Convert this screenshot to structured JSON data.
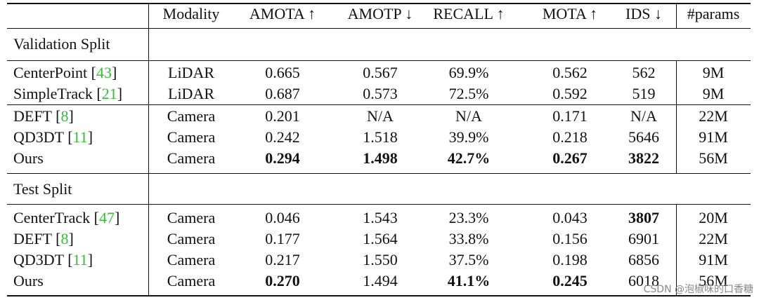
{
  "columns": [
    "",
    "Modality",
    "AMOTA ↑",
    "AMOTP ↓",
    "RECALL ↑",
    "MOTA ↑",
    "IDS ↓",
    "#params"
  ],
  "sections": [
    {
      "title": "Validation Split",
      "groups": [
        [
          {
            "method": "CenterPoint",
            "ref": "43",
            "modality": "LiDAR",
            "amota": "0.665",
            "amotp": "0.567",
            "recall": "69.9%",
            "mota": "0.562",
            "ids": "562",
            "params": "9M",
            "bold": []
          },
          {
            "method": "SimpleTrack",
            "ref": "21",
            "modality": "LiDAR",
            "amota": "0.687",
            "amotp": "0.573",
            "recall": "72.5%",
            "mota": "0.592",
            "ids": "519",
            "params": "9M",
            "bold": []
          }
        ],
        [
          {
            "method": "DEFT",
            "ref": "8",
            "modality": "Camera",
            "amota": "0.201",
            "amotp": "N/A",
            "recall": "N/A",
            "mota": "0.171",
            "ids": "N/A",
            "params": "22M",
            "bold": []
          },
          {
            "method": "QD3DT",
            "ref": "11",
            "modality": "Camera",
            "amota": "0.242",
            "amotp": "1.518",
            "recall": "39.9%",
            "mota": "0.218",
            "ids": "5646",
            "params": "91M",
            "bold": []
          },
          {
            "method": "Ours",
            "ref": "",
            "modality": "Camera",
            "amota": "0.294",
            "amotp": "1.498",
            "recall": "42.7%",
            "mota": "0.267",
            "ids": "3822",
            "params": "56M",
            "bold": [
              "amota",
              "amotp",
              "recall",
              "mota",
              "ids"
            ]
          }
        ]
      ]
    },
    {
      "title": "Test Split",
      "groups": [
        [
          {
            "method": "CenterTrack",
            "ref": "47",
            "modality": "Camera",
            "amota": "0.046",
            "amotp": "1.543",
            "recall": "23.3%",
            "mota": "0.043",
            "ids": "3807",
            "params": "20M",
            "bold": [
              "ids"
            ]
          },
          {
            "method": "DEFT",
            "ref": "8",
            "modality": "Camera",
            "amota": "0.177",
            "amotp": "1.564",
            "recall": "33.8%",
            "mota": "0.156",
            "ids": "6901",
            "params": "22M",
            "bold": []
          },
          {
            "method": "QD3DT",
            "ref": "11",
            "modality": "Camera",
            "amota": "0.217",
            "amotp": "1.550",
            "recall": "37.5%",
            "mota": "0.198",
            "ids": "6856",
            "params": "91M",
            "bold": []
          },
          {
            "method": "Ours",
            "ref": "",
            "modality": "Camera",
            "amota": "0.270",
            "amotp": "1.494",
            "recall": "41.1%",
            "mota": "0.245",
            "ids": "6018",
            "params": "56M",
            "bold": [
              "amota",
              "recall",
              "mota"
            ]
          }
        ]
      ]
    }
  ],
  "watermark": "CSDN @泡椒味的口香糖"
}
